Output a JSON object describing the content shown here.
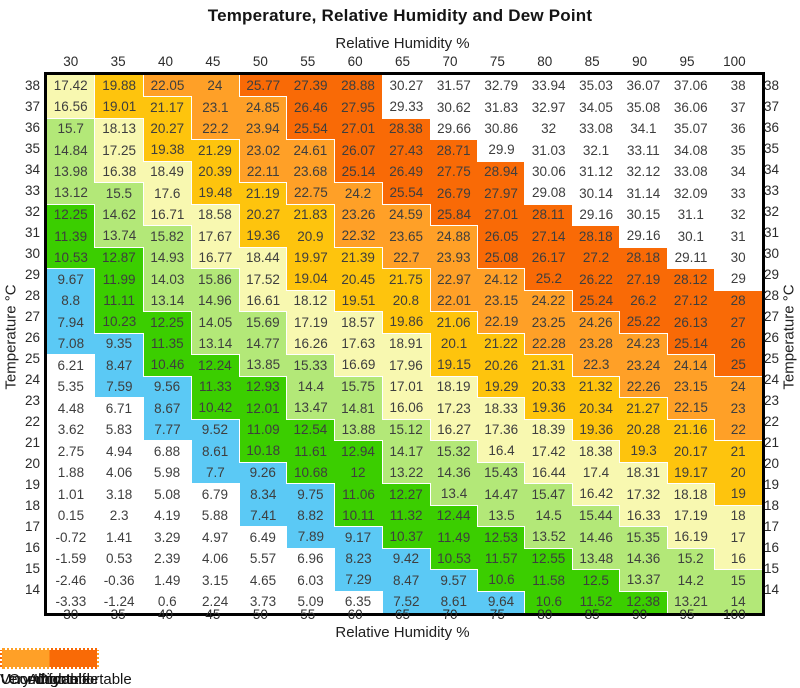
{
  "title": "Temperature, Relative Humidity and Dew Point",
  "chart_data": {
    "type": "heatmap",
    "title": "Temperature, Relative Humidity and Dew Point",
    "xlabel_top": "Relative Humidity %",
    "xlabel_bottom": "Relative Humidity %",
    "ylabel_left": "Temperature °C",
    "ylabel_right": "Temperature °C",
    "humidity_percent": [
      30,
      35,
      40,
      45,
      50,
      55,
      60,
      65,
      70,
      75,
      80,
      85,
      90,
      95,
      100
    ],
    "temperature_c": [
      38,
      37,
      36,
      35,
      34,
      33,
      32,
      31,
      30,
      29,
      28,
      27,
      26,
      25,
      24,
      23,
      22,
      21,
      20,
      19,
      18,
      17,
      16,
      15,
      14
    ],
    "dew_point": [
      [
        17.42,
        19.88,
        22.05,
        24,
        25.77,
        27.39,
        28.88,
        30.27,
        31.57,
        32.79,
        33.94,
        35.03,
        36.07,
        37.06,
        38
      ],
      [
        16.56,
        19.01,
        21.17,
        23.1,
        24.85,
        26.46,
        27.95,
        29.33,
        30.62,
        31.83,
        32.97,
        34.05,
        35.08,
        36.06,
        37
      ],
      [
        15.7,
        18.13,
        20.27,
        22.2,
        23.94,
        25.54,
        27.01,
        28.38,
        29.66,
        30.86,
        32,
        33.08,
        34.1,
        35.07,
        36
      ],
      [
        14.84,
        17.25,
        19.38,
        21.29,
        23.02,
        24.61,
        26.07,
        27.43,
        28.71,
        29.9,
        31.03,
        32.1,
        33.11,
        34.08,
        35
      ],
      [
        13.98,
        16.38,
        18.49,
        20.39,
        22.11,
        23.68,
        25.14,
        26.49,
        27.75,
        28.94,
        30.06,
        31.12,
        32.12,
        33.08,
        34
      ],
      [
        13.12,
        15.5,
        17.6,
        19.48,
        21.19,
        22.75,
        24.2,
        25.54,
        26.79,
        27.97,
        29.08,
        30.14,
        31.14,
        32.09,
        33
      ],
      [
        12.25,
        14.62,
        16.71,
        18.58,
        20.27,
        21.83,
        23.26,
        24.59,
        25.84,
        27.01,
        28.11,
        29.16,
        30.15,
        31.1,
        32
      ],
      [
        11.39,
        13.74,
        15.82,
        17.67,
        19.36,
        20.9,
        22.32,
        23.65,
        24.88,
        26.05,
        27.14,
        28.18,
        29.16,
        30.1,
        31
      ],
      [
        10.53,
        12.87,
        14.93,
        16.77,
        18.44,
        19.97,
        21.39,
        22.7,
        23.93,
        25.08,
        26.17,
        27.2,
        28.18,
        29.11,
        30
      ],
      [
        9.67,
        11.99,
        14.03,
        15.86,
        17.52,
        19.04,
        20.45,
        21.75,
        22.97,
        24.12,
        25.2,
        26.22,
        27.19,
        28.12,
        29
      ],
      [
        8.8,
        11.11,
        13.14,
        14.96,
        16.61,
        18.12,
        19.51,
        20.8,
        22.01,
        23.15,
        24.22,
        25.24,
        26.2,
        27.12,
        28
      ],
      [
        7.94,
        10.23,
        12.25,
        14.05,
        15.69,
        17.19,
        18.57,
        19.86,
        21.06,
        22.19,
        23.25,
        24.26,
        25.22,
        26.13,
        27
      ],
      [
        7.08,
        9.35,
        11.35,
        13.14,
        14.77,
        16.26,
        17.63,
        18.91,
        20.1,
        21.22,
        22.28,
        23.28,
        24.23,
        25.14,
        26
      ],
      [
        6.21,
        8.47,
        10.46,
        12.24,
        13.85,
        15.33,
        16.69,
        17.96,
        19.15,
        20.26,
        21.31,
        22.3,
        23.24,
        24.14,
        25
      ],
      [
        5.35,
        7.59,
        9.56,
        11.33,
        12.93,
        14.4,
        15.75,
        17.01,
        18.19,
        19.29,
        20.33,
        21.32,
        22.26,
        23.15,
        24
      ],
      [
        4.48,
        6.71,
        8.67,
        10.42,
        12.01,
        13.47,
        14.81,
        16.06,
        17.23,
        18.33,
        19.36,
        20.34,
        21.27,
        22.15,
        23
      ],
      [
        3.62,
        5.83,
        7.77,
        9.52,
        11.09,
        12.54,
        13.88,
        15.12,
        16.27,
        17.36,
        18.39,
        19.36,
        20.28,
        21.16,
        22
      ],
      [
        2.75,
        4.94,
        6.88,
        8.61,
        10.18,
        11.61,
        12.94,
        14.17,
        15.32,
        16.4,
        17.42,
        18.38,
        19.3,
        20.17,
        21
      ],
      [
        1.88,
        4.06,
        5.98,
        7.7,
        9.26,
        10.68,
        12,
        13.22,
        14.36,
        15.43,
        16.44,
        17.4,
        18.31,
        19.17,
        20
      ],
      [
        1.01,
        3.18,
        5.08,
        6.79,
        8.34,
        9.75,
        11.06,
        12.27,
        13.4,
        14.47,
        15.47,
        16.42,
        17.32,
        18.18,
        19
      ],
      [
        0.15,
        2.3,
        4.19,
        5.88,
        7.41,
        8.82,
        10.11,
        11.32,
        12.44,
        13.5,
        14.5,
        15.44,
        16.33,
        17.19,
        18
      ],
      [
        -0.72,
        1.41,
        3.29,
        4.97,
        6.49,
        7.89,
        9.17,
        10.37,
        11.49,
        12.53,
        13.52,
        14.46,
        15.35,
        16.19,
        17
      ],
      [
        -1.59,
        0.53,
        2.39,
        4.06,
        5.57,
        6.96,
        8.23,
        9.42,
        10.53,
        11.57,
        12.55,
        13.48,
        14.36,
        15.2,
        16
      ],
      [
        -2.46,
        -0.36,
        1.49,
        3.15,
        4.65,
        6.03,
        7.29,
        8.47,
        9.57,
        10.6,
        11.58,
        12.5,
        13.37,
        14.2,
        15
      ],
      [
        -3.33,
        -1.24,
        0.6,
        2.24,
        3.73,
        5.09,
        6.35,
        7.52,
        8.61,
        9.64,
        10.6,
        11.52,
        12.38,
        13.21,
        14
      ]
    ],
    "bands": [
      {
        "name": "dry",
        "label": "Dry",
        "min": 7,
        "max": 10,
        "color": "#5BC9F5"
      },
      {
        "name": "comfortable-low",
        "label": "Comfortable",
        "min": 10,
        "max": 13,
        "color": "#3BCE00"
      },
      {
        "name": "comfortable-high",
        "label": "Comfortable",
        "min": 13,
        "max": 16,
        "color": "#B3E878"
      },
      {
        "name": "alright",
        "label": "Alright",
        "min": 16,
        "max": 19,
        "color": "#F8F8B0"
      },
      {
        "name": "uncomfortable",
        "label": "Uncomfortable",
        "min": 19,
        "max": 22,
        "color": "#FEC40D"
      },
      {
        "name": "very-uncomfortable-low",
        "label": "Very Uncomfortable",
        "min": 22,
        "max": 25,
        "color": "#FFA027"
      },
      {
        "name": "very-uncomfortable-high",
        "label": "Very Uncomfortable",
        "min": 25,
        "max": 29,
        "color": "#F96A06"
      }
    ],
    "out_of_range_color": "#FFFFFF",
    "legend": [
      {
        "label": "Dry",
        "colors": [
          "#5BC9F5"
        ]
      },
      {
        "label": "Comfortable",
        "colors": [
          "#3BCE00",
          "#B3E878"
        ]
      },
      {
        "label": "Alright",
        "colors": [
          "#F8F8B0"
        ]
      },
      {
        "label": "Uncomfortable",
        "colors": [
          "#FEC40D"
        ]
      },
      {
        "label": "Very Uncomfortable",
        "colors": [
          "#FFA027",
          "#F96A06"
        ]
      }
    ]
  }
}
